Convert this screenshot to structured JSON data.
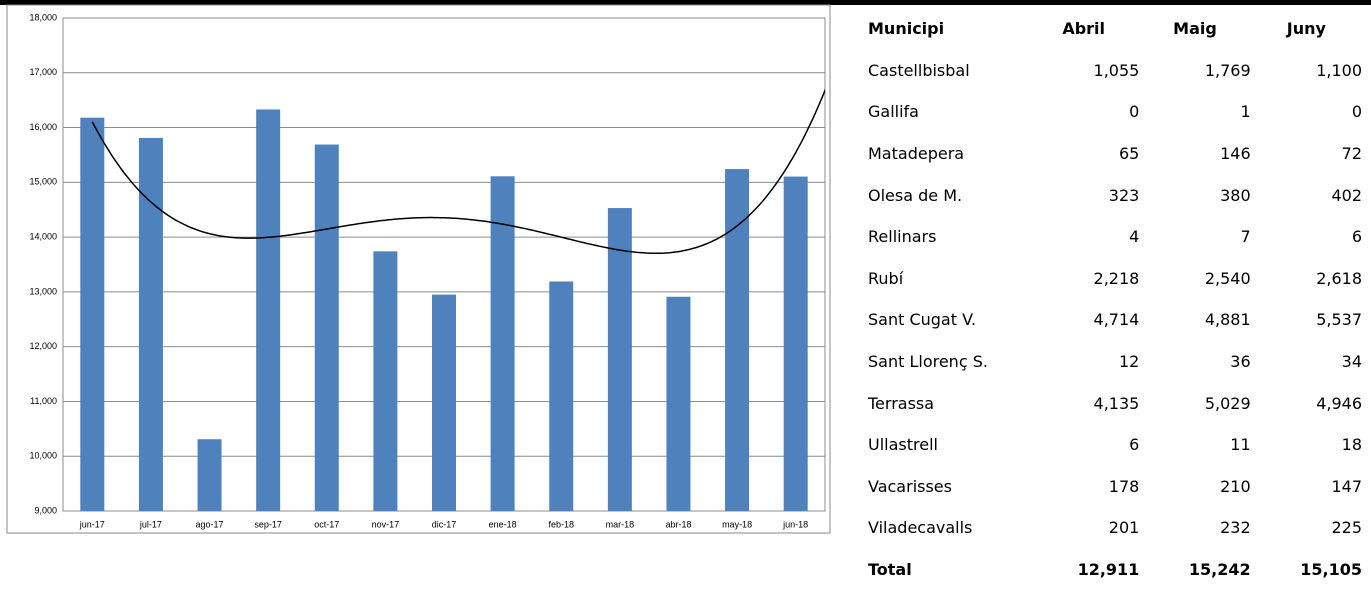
{
  "chart_data": {
    "type": "bar",
    "categories": [
      "jun-17",
      "jul-17",
      "ago-17",
      "sep-17",
      "oct-17",
      "nov-17",
      "dic-17",
      "ene-18",
      "feb-18",
      "mar-18",
      "abr-18",
      "may-18",
      "jun-18"
    ],
    "values": [
      16180,
      15810,
      10310,
      16330,
      15690,
      13740,
      12950,
      15110,
      13190,
      14530,
      12911,
      15242,
      15105
    ],
    "color": "#4f81bd",
    "ylim": [
      9000,
      18000
    ],
    "yticks": [
      {
        "value": 9000,
        "label": "9,000"
      },
      {
        "value": 10000,
        "label": "10,000"
      },
      {
        "value": 11000,
        "label": "11,000"
      },
      {
        "value": 12000,
        "label": "12,000"
      },
      {
        "value": 13000,
        "label": "13,000"
      },
      {
        "value": 14000,
        "label": "14,000"
      },
      {
        "value": 15000,
        "label": "15,000"
      },
      {
        "value": 16000,
        "label": "16,000"
      },
      {
        "value": 17000,
        "label": "17,000"
      },
      {
        "value": 18000,
        "label": "18,000"
      }
    ],
    "grid": true
  },
  "table": {
    "header": [
      "Municipi",
      "Abril",
      "Maig",
      "Juny"
    ],
    "rows": [
      [
        "Castellbisbal",
        "1,055",
        "1,769",
        "1,100"
      ],
      [
        "Gallifa",
        "0",
        "1",
        "0"
      ],
      [
        "Matadepera",
        "65",
        "146",
        "72"
      ],
      [
        "Olesa de M.",
        "323",
        "380",
        "402"
      ],
      [
        "Rellinars",
        "4",
        "7",
        "6"
      ],
      [
        "Rubí",
        "2,218",
        "2,540",
        "2,618"
      ],
      [
        "Sant Cugat V.",
        "4,714",
        "4,881",
        "5,537"
      ],
      [
        "Sant Llorenç S.",
        "12",
        "36",
        "34"
      ],
      [
        "Terrassa",
        "4,135",
        "5,029",
        "4,946"
      ],
      [
        "Ullastrell",
        "6",
        "11",
        "18"
      ],
      [
        "Vacarisses",
        "178",
        "210",
        "147"
      ],
      [
        "Viladecavalls",
        "201",
        "232",
        "225"
      ]
    ],
    "total": [
      "Total",
      "12,911",
      "15,242",
      "15,105"
    ]
  }
}
